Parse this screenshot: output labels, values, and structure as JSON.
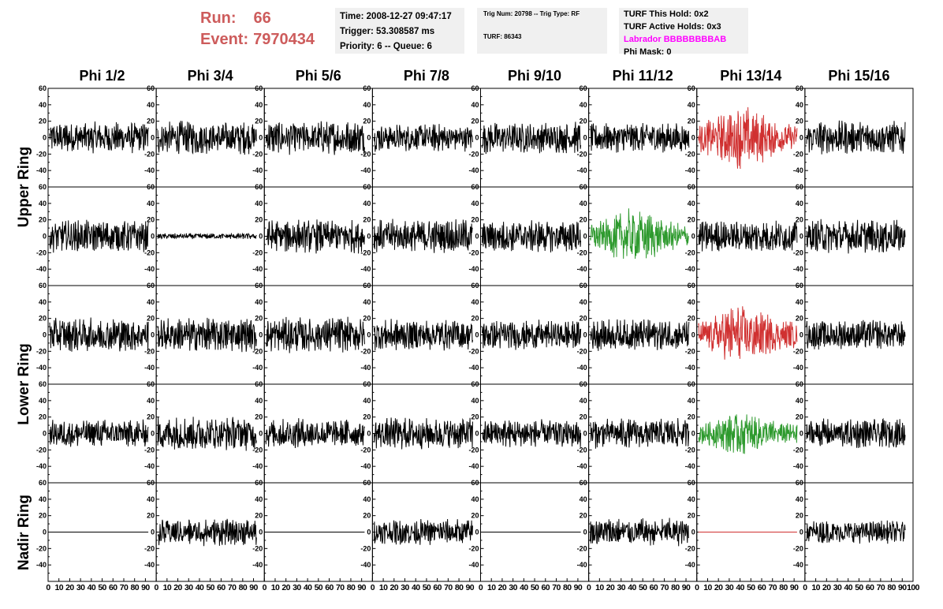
{
  "header": {
    "run_label": "Run:",
    "run_value": "66",
    "event_label": "Event:",
    "event_value": "7970434"
  },
  "time_box": {
    "time": "Time: 2008-12-27 09:47:17",
    "trigger": "Trigger: 53.308587 ms",
    "priority": "Priority: 6 -- Queue: 6"
  },
  "trig_box": {
    "trig": "Trig Num: 20798 -- Trig Type: RF",
    "turf": "TURF: 86343"
  },
  "turf_box": {
    "this_hold": "TURF This Hold: 0x2",
    "active_holds": "TURF Active Holds: 0x3",
    "labrador": "Labrador BBBBBBBBAB",
    "phi_mask": "Phi Mask: 0"
  },
  "colors": {
    "accent": "#cd5c5c",
    "triggered": "#d03030",
    "green": "#2e9a2e",
    "magenta": "#ff00ff",
    "trace": "#000000"
  },
  "chart_data": {
    "type": "line",
    "columns": [
      "Phi 1/2",
      "Phi 3/4",
      "Phi 5/6",
      "Phi 7/8",
      "Phi 9/10",
      "Phi 11/12",
      "Phi 13/14",
      "Phi 15/16"
    ],
    "ring_labels": [
      {
        "label": "Upper Ring",
        "rows": [
          0,
          1
        ]
      },
      {
        "label": "Lower Ring",
        "rows": [
          2,
          3
        ]
      },
      {
        "label": "Nadir Ring",
        "rows": [
          4
        ]
      }
    ],
    "ylim": [
      -60,
      60
    ],
    "yticks": [
      -40,
      -20,
      0,
      20,
      40,
      60
    ],
    "xlim": [
      0,
      100
    ],
    "xticks": [
      0,
      10,
      20,
      30,
      40,
      50,
      60,
      70,
      80,
      90,
      100
    ],
    "panels": [
      [
        {
          "c": "black",
          "a": 16
        },
        {
          "c": "black",
          "a": 17
        },
        {
          "c": "black",
          "a": 17
        },
        {
          "c": "black",
          "a": 14
        },
        {
          "c": "black",
          "a": 16
        },
        {
          "c": "black",
          "a": 15
        },
        {
          "c": "red",
          "a": 25
        },
        {
          "c": "black",
          "a": 17
        }
      ],
      [
        {
          "c": "black",
          "a": 16
        },
        {
          "c": "black",
          "a": 3
        },
        {
          "c": "black",
          "a": 17
        },
        {
          "c": "black",
          "a": 17
        },
        {
          "c": "black",
          "a": 16
        },
        {
          "c": "green",
          "a": 22
        },
        {
          "c": "black",
          "a": 16
        },
        {
          "c": "black",
          "a": 17
        }
      ],
      [
        {
          "c": "black",
          "a": 17
        },
        {
          "c": "black",
          "a": 17
        },
        {
          "c": "black",
          "a": 18
        },
        {
          "c": "black",
          "a": 16
        },
        {
          "c": "black",
          "a": 15
        },
        {
          "c": "black",
          "a": 16
        },
        {
          "c": "red",
          "a": 24
        },
        {
          "c": "black",
          "a": 15
        }
      ],
      [
        {
          "c": "black",
          "a": 14
        },
        {
          "c": "black",
          "a": 17
        },
        {
          "c": "black",
          "a": 15
        },
        {
          "c": "black",
          "a": 16
        },
        {
          "c": "black",
          "a": 14
        },
        {
          "c": "black",
          "a": 15
        },
        {
          "c": "green",
          "a": 17
        },
        {
          "c": "black",
          "a": 15
        }
      ],
      [
        {
          "c": "black",
          "a": 0
        },
        {
          "c": "black",
          "a": 14
        },
        {
          "c": "black",
          "a": 0
        },
        {
          "c": "black",
          "a": 13
        },
        {
          "c": "black",
          "a": 0
        },
        {
          "c": "black",
          "a": 14
        },
        {
          "c": "red",
          "a": 0
        },
        {
          "c": "black",
          "a": 12
        }
      ]
    ]
  }
}
